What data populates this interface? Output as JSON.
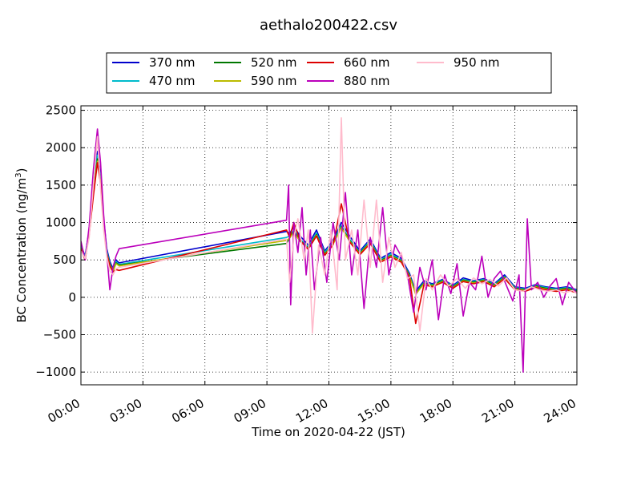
{
  "chart_data": {
    "type": "line",
    "title": "aethalo200422.csv",
    "xlabel": "Time on 2020-04-22 (JST)",
    "ylabel": "BC Concentration (ng/m",
    "ylabel_sup": "3",
    "ylabel_end": ")",
    "x_unit": "hours",
    "xlim": [
      0,
      24
    ],
    "ylim": [
      -1170,
      2560
    ],
    "x_ticks": [
      {
        "value": 0,
        "label": "00:00"
      },
      {
        "value": 3,
        "label": "03:00"
      },
      {
        "value": 6,
        "label": "06:00"
      },
      {
        "value": 9,
        "label": "09:00"
      },
      {
        "value": 12,
        "label": "12:00"
      },
      {
        "value": 15,
        "label": "15:00"
      },
      {
        "value": 18,
        "label": "18:00"
      },
      {
        "value": 21,
        "label": "21:00"
      },
      {
        "value": 24,
        "label": "24:00"
      }
    ],
    "y_ticks": [
      {
        "value": -1000,
        "label": "−1000"
      },
      {
        "value": -500,
        "label": "−500"
      },
      {
        "value": 0,
        "label": "0"
      },
      {
        "value": 500,
        "label": "500"
      },
      {
        "value": 1000,
        "label": "1000"
      },
      {
        "value": 1500,
        "label": "1500"
      },
      {
        "value": 2000,
        "label": "2000"
      },
      {
        "value": 2500,
        "label": "2500"
      }
    ],
    "grid": true,
    "legend_position": "top-center",
    "series": [
      {
        "name": "370 nm",
        "color": "#0000cc",
        "x": [
          0,
          0.2,
          0.4,
          0.6,
          0.8,
          0.95,
          1.1,
          1.25,
          1.4,
          1.55,
          1.7,
          1.85,
          9.95,
          10.1,
          10.3,
          10.6,
          11.0,
          11.4,
          11.8,
          12.2,
          12.6,
          13.0,
          13.5,
          14.0,
          14.5,
          15.0,
          15.5,
          15.9,
          16.2,
          16.6,
          17.0,
          17.5,
          18.0,
          18.5,
          19.0,
          19.5,
          20.0,
          20.5,
          21.0,
          21.5,
          22.0,
          22.5,
          23.0,
          23.5,
          24.0
        ],
        "y": [
          700,
          550,
          900,
          1500,
          1950,
          1650,
          1050,
          650,
          480,
          380,
          500,
          460,
          880,
          850,
          950,
          820,
          700,
          900,
          620,
          760,
          1000,
          820,
          620,
          780,
          520,
          600,
          520,
          320,
          80,
          220,
          180,
          240,
          160,
          260,
          220,
          250,
          180,
          300,
          140,
          120,
          170,
          140,
          120,
          140,
          100
        ]
      },
      {
        "name": "470 nm",
        "color": "#00bbcc",
        "x": [
          0,
          0.2,
          0.4,
          0.6,
          0.8,
          0.95,
          1.1,
          1.25,
          1.4,
          1.55,
          1.7,
          1.85,
          9.95,
          10.1,
          10.3,
          10.6,
          11.0,
          11.4,
          11.8,
          12.2,
          12.6,
          13.0,
          13.5,
          14.0,
          14.5,
          15.0,
          15.5,
          15.9,
          16.2,
          16.6,
          17.0,
          17.5,
          18.0,
          18.5,
          19.0,
          19.5,
          20.0,
          20.5,
          21.0,
          21.5,
          22.0,
          22.5,
          23.0,
          23.5,
          24.0
        ],
        "y": [
          680,
          540,
          880,
          1450,
          1900,
          1600,
          1000,
          620,
          450,
          360,
          480,
          440,
          800,
          820,
          900,
          780,
          680,
          860,
          600,
          740,
          960,
          780,
          600,
          760,
          500,
          580,
          500,
          300,
          60,
          200,
          170,
          230,
          150,
          240,
          210,
          240,
          170,
          280,
          130,
          110,
          160,
          130,
          110,
          130,
          90
        ]
      },
      {
        "name": "520 nm",
        "color": "#007700",
        "x": [
          0,
          0.2,
          0.4,
          0.6,
          0.8,
          0.95,
          1.1,
          1.25,
          1.4,
          1.55,
          1.7,
          1.85,
          9.95,
          10.1,
          10.3,
          10.6,
          11.0,
          11.4,
          11.8,
          12.2,
          12.6,
          13.0,
          13.5,
          14.0,
          14.5,
          15.0,
          15.5,
          15.9,
          16.2,
          16.6,
          17.0,
          17.5,
          18.0,
          18.5,
          19.0,
          19.5,
          20.0,
          20.5,
          21.0,
          21.5,
          22.0,
          22.5,
          23.0,
          23.5,
          24.0
        ],
        "y": [
          660,
          520,
          860,
          1400,
          1850,
          1560,
          980,
          600,
          440,
          350,
          460,
          430,
          720,
          800,
          880,
          760,
          660,
          840,
          580,
          720,
          940,
          760,
          590,
          740,
          490,
          560,
          490,
          290,
          50,
          190,
          160,
          220,
          140,
          230,
          200,
          230,
          160,
          270,
          120,
          100,
          150,
          120,
          100,
          120,
          80
        ]
      },
      {
        "name": "590 nm",
        "color": "#bbbb00",
        "x": [
          0,
          0.2,
          0.4,
          0.6,
          0.8,
          0.95,
          1.1,
          1.25,
          1.4,
          1.55,
          1.7,
          1.85,
          9.95,
          10.1,
          10.3,
          10.6,
          11.0,
          11.4,
          11.8,
          12.2,
          12.6,
          13.0,
          13.5,
          14.0,
          14.5,
          15.0,
          15.5,
          15.9,
          16.2,
          16.6,
          17.0,
          17.5,
          18.0,
          18.5,
          19.0,
          19.5,
          20.0,
          20.5,
          21.0,
          21.5,
          22.0,
          22.5,
          23.0,
          23.5,
          24.0
        ],
        "y": [
          650,
          510,
          850,
          1380,
          1820,
          1540,
          960,
          590,
          430,
          345,
          450,
          420,
          760,
          790,
          870,
          750,
          650,
          830,
          570,
          710,
          930,
          750,
          580,
          730,
          480,
          550,
          480,
          280,
          40,
          180,
          150,
          210,
          130,
          220,
          190,
          220,
          150,
          260,
          110,
          90,
          140,
          110,
          90,
          110,
          70
        ]
      },
      {
        "name": "660 nm",
        "color": "#dd0000",
        "x": [
          0,
          0.2,
          0.4,
          0.6,
          0.8,
          0.95,
          1.1,
          1.25,
          1.4,
          1.55,
          1.7,
          1.85,
          9.95,
          10.1,
          10.3,
          10.6,
          11.0,
          11.4,
          11.8,
          12.2,
          12.6,
          13.0,
          13.5,
          14.0,
          14.5,
          15.0,
          15.5,
          15.9,
          16.2,
          16.6,
          17.0,
          17.5,
          18.0,
          18.5,
          19.0,
          19.5,
          20.0,
          20.5,
          21.0,
          21.5,
          22.0,
          22.5,
          23.0,
          23.5,
          24.0
        ],
        "y": [
          640,
          500,
          840,
          1350,
          1800,
          1520,
          950,
          580,
          420,
          340,
          370,
          360,
          900,
          800,
          1000,
          760,
          640,
          820,
          560,
          700,
          1250,
          740,
          570,
          720,
          470,
          540,
          470,
          270,
          -350,
          170,
          140,
          200,
          120,
          210,
          180,
          210,
          140,
          250,
          100,
          80,
          130,
          100,
          80,
          100,
          60
        ]
      },
      {
        "name": "880 nm",
        "color": "#bb00bb",
        "x": [
          0,
          0.2,
          0.4,
          0.6,
          0.8,
          0.95,
          1.1,
          1.25,
          1.4,
          1.55,
          1.7,
          1.85,
          9.95,
          10.05,
          10.15,
          10.3,
          10.5,
          10.7,
          10.9,
          11.1,
          11.3,
          11.6,
          11.9,
          12.2,
          12.5,
          12.8,
          13.1,
          13.4,
          13.7,
          14.0,
          14.3,
          14.6,
          14.9,
          15.2,
          15.5,
          15.8,
          16.1,
          16.4,
          16.7,
          17.0,
          17.3,
          17.6,
          17.9,
          18.2,
          18.5,
          18.8,
          19.1,
          19.4,
          19.7,
          20.0,
          20.3,
          20.6,
          20.9,
          21.2,
          21.4,
          21.6,
          21.8,
          22.1,
          22.4,
          22.7,
          23.0,
          23.3,
          23.6,
          24.0
        ],
        "y": [
          750,
          500,
          950,
          1700,
          2250,
          1800,
          1100,
          600,
          100,
          400,
          550,
          650,
          1030,
          1500,
          -100,
          1000,
          600,
          1200,
          300,
          900,
          100,
          800,
          200,
          1000,
          500,
          1400,
          300,
          900,
          -150,
          800,
          400,
          1200,
          300,
          700,
          550,
          300,
          -200,
          400,
          100,
          500,
          -300,
          300,
          50,
          450,
          -250,
          200,
          100,
          550,
          0,
          250,
          350,
          150,
          -50,
          300,
          -1000,
          1050,
          100,
          200,
          0,
          150,
          250,
          -100,
          200,
          50
        ]
      },
      {
        "name": "950 nm",
        "color": "#ffbbcc",
        "x": [
          0,
          0.2,
          0.4,
          0.6,
          0.8,
          0.95,
          1.1,
          1.25,
          1.4,
          1.55,
          1.7,
          1.85,
          9.95,
          10.1,
          10.3,
          10.5,
          10.8,
          11.0,
          11.2,
          11.5,
          11.8,
          12.1,
          12.4,
          12.6,
          12.8,
          13.1,
          13.4,
          13.7,
          14.0,
          14.3,
          14.6,
          14.9,
          15.2,
          15.5,
          15.8,
          16.1,
          16.4,
          16.7,
          17.0,
          17.4,
          17.8,
          18.2,
          18.6,
          19.0,
          19.4,
          19.8,
          20.2,
          20.6,
          21.0,
          21.4,
          21.8,
          22.2,
          22.6,
          23.0,
          23.4,
          23.8,
          24.0
        ],
        "y": [
          620,
          520,
          800,
          1500,
          2150,
          1450,
          900,
          550,
          350,
          300,
          380,
          400,
          780,
          200,
          800,
          1050,
          500,
          900,
          -480,
          700,
          300,
          900,
          100,
          2400,
          500,
          900,
          300,
          1300,
          400,
          1300,
          200,
          800,
          400,
          600,
          250,
          300,
          -450,
          250,
          100,
          300,
          150,
          250,
          120,
          260,
          180,
          240,
          150,
          260,
          100,
          80,
          140,
          100,
          80,
          100,
          60,
          90,
          50
        ]
      }
    ]
  }
}
